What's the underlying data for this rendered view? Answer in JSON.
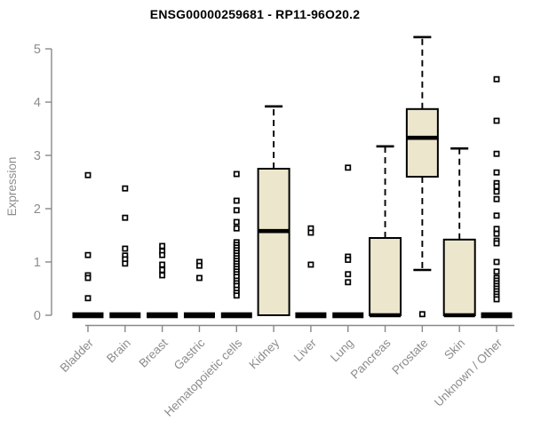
{
  "chart_data": {
    "type": "boxplot",
    "title": "ENSG00000259681 - RP11-96O20.2",
    "ylabel": "Expression",
    "xlabel": "",
    "ylim": [
      0,
      5
    ],
    "yticks": [
      0,
      1,
      2,
      3,
      4,
      5
    ],
    "grid": false,
    "legend": "none",
    "categories": [
      "Bladder",
      "Brain",
      "Breast",
      "Gastric",
      "Hematopoietic cells",
      "Kidney",
      "Liver",
      "Lung",
      "Pancreas",
      "Prostate",
      "Skin",
      "Unknown / Other"
    ],
    "boxes": [
      {
        "category": "Bladder",
        "q1": 0,
        "median": 0,
        "q3": 0,
        "whisker_low": 0,
        "whisker_high": 0,
        "outliers": [
          2.63,
          1.13,
          0.75,
          0.7,
          0.32
        ]
      },
      {
        "category": "Brain",
        "q1": 0,
        "median": 0,
        "q3": 0,
        "whisker_low": 0,
        "whisker_high": 0,
        "outliers": [
          2.38,
          1.83,
          1.25,
          1.12,
          1.05,
          0.97
        ]
      },
      {
        "category": "Breast",
        "q1": 0,
        "median": 0,
        "q3": 0,
        "whisker_low": 0,
        "whisker_high": 0,
        "outliers": [
          1.3,
          1.2,
          1.13,
          0.95,
          0.85,
          0.75
        ]
      },
      {
        "category": "Gastric",
        "q1": 0,
        "median": 0,
        "q3": 0,
        "whisker_low": 0,
        "whisker_high": 0,
        "outliers": [
          1.0,
          0.93,
          0.7
        ]
      },
      {
        "category": "Hematopoietic cells",
        "q1": 0,
        "median": 0,
        "q3": 0,
        "whisker_low": 0,
        "whisker_high": 0,
        "outliers": [
          2.65,
          2.15,
          1.97,
          1.75,
          1.63,
          1.37,
          1.32,
          1.27,
          1.22,
          1.17,
          1.12,
          1.07,
          1.02,
          0.97,
          0.92,
          0.87,
          0.82,
          0.77,
          0.72,
          0.65,
          0.6,
          0.55,
          0.48,
          0.42,
          0.37
        ]
      },
      {
        "category": "Kidney",
        "q1": 0,
        "median": 1.58,
        "q3": 2.75,
        "whisker_low": 0,
        "whisker_high": 3.92,
        "outliers": []
      },
      {
        "category": "Liver",
        "q1": 0,
        "median": 0,
        "q3": 0,
        "whisker_low": 0,
        "whisker_high": 0,
        "outliers": [
          1.63,
          1.55,
          0.95
        ]
      },
      {
        "category": "Lung",
        "q1": 0,
        "median": 0,
        "q3": 0,
        "whisker_low": 0,
        "whisker_high": 0,
        "outliers": [
          2.77,
          1.1,
          1.04,
          0.77,
          0.62
        ]
      },
      {
        "category": "Pancreas",
        "q1": 0,
        "median": 0,
        "q3": 1.45,
        "whisker_low": 0,
        "whisker_high": 3.17,
        "outliers": []
      },
      {
        "category": "Prostate",
        "q1": 2.6,
        "median": 3.33,
        "q3": 3.87,
        "whisker_low": 0.85,
        "whisker_high": 5.22,
        "outliers": [
          0.02
        ]
      },
      {
        "category": "Skin",
        "q1": 0,
        "median": 0,
        "q3": 1.42,
        "whisker_low": 0,
        "whisker_high": 3.13,
        "outliers": []
      },
      {
        "category": "Unknown / Other",
        "q1": 0,
        "median": 0,
        "q3": 0,
        "whisker_low": 0,
        "whisker_high": 0,
        "outliers": [
          4.43,
          3.65,
          3.03,
          2.68,
          2.48,
          2.42,
          2.32,
          2.18,
          1.87,
          1.62,
          1.53,
          1.4,
          1.35,
          1.0,
          0.82,
          0.7,
          0.65,
          0.6,
          0.55,
          0.5,
          0.45,
          0.4,
          0.35,
          0.3
        ]
      }
    ],
    "colors": {
      "background": "#ffffff",
      "box_fill": "#ece6cd",
      "box_stroke": "#000000",
      "median": "#000000",
      "zero_bar": "#000000",
      "outlier_stroke": "#000000",
      "outlier_fill": "#ffffff",
      "axis_line": "#888888",
      "tick_label": "#8c8c8c",
      "title": "#000000"
    }
  }
}
